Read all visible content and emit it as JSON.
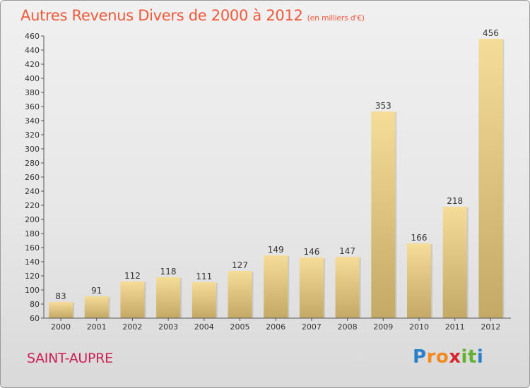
{
  "header": {
    "title": "Autres Revenus Divers de 2000 à 2012",
    "unit": "(en milliers d'€)"
  },
  "footer": {
    "place": "SAINT-AUPRE"
  },
  "brand": {
    "letters": [
      "P",
      "r",
      "o",
      "x",
      "i",
      "t",
      "i"
    ],
    "colors": [
      "#2a7fc9",
      "#f28a1e",
      "#f28a1e",
      "#d8262e",
      "#62b22f",
      "#62b22f",
      "#2a7fc9"
    ]
  },
  "chart_data": {
    "type": "bar",
    "title": "Autres Revenus Divers de 2000 à 2012",
    "categories": [
      "2000",
      "2001",
      "2002",
      "2003",
      "2004",
      "2005",
      "2006",
      "2007",
      "2008",
      "2009",
      "2010",
      "2011",
      "2012"
    ],
    "values": [
      83,
      91,
      112,
      118,
      111,
      127,
      149,
      146,
      147,
      353,
      166,
      218,
      456
    ],
    "ylim": [
      60,
      460
    ],
    "ytick_step": 20,
    "grid": false,
    "colors": {
      "bar_light": "#f5dc97",
      "bar_dark": "#c4a865",
      "axis": "#555555",
      "label": "#333333"
    }
  }
}
